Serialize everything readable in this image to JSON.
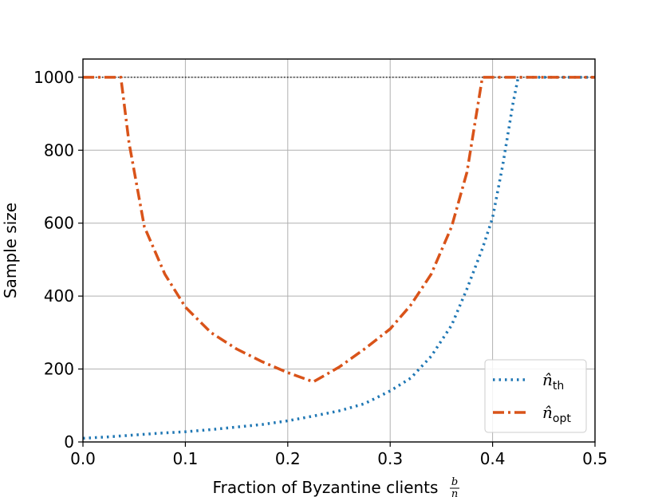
{
  "chart_data": {
    "type": "line",
    "xlabel": "Fraction of Byzantine clients",
    "xlabel_fraction": {
      "numerator": "b",
      "denominator": "n"
    },
    "ylabel": "Sample size",
    "xlim": [
      0.0,
      0.5
    ],
    "ylim": [
      0,
      1050
    ],
    "xticks": [
      0.0,
      0.1,
      0.2,
      0.3,
      0.4,
      0.5
    ],
    "xtick_labels": [
      "0.0",
      "0.1",
      "0.2",
      "0.3",
      "0.4",
      "0.5"
    ],
    "yticks": [
      0,
      200,
      400,
      600,
      800,
      1000
    ],
    "ytick_labels": [
      "0",
      "200",
      "400",
      "600",
      "800",
      "1000"
    ],
    "grid": true,
    "legend_position": "lower-right",
    "reference_line": {
      "y": 1000,
      "style": "dotted",
      "color": "#000000"
    },
    "series": [
      {
        "name": "n̂th",
        "legend_base": "n̂",
        "legend_sub": "th",
        "color": "#1f77b4",
        "style": "dotted",
        "x": [
          0.0,
          0.025,
          0.05,
          0.075,
          0.1,
          0.125,
          0.15,
          0.175,
          0.2,
          0.225,
          0.25,
          0.275,
          0.3,
          0.32,
          0.34,
          0.36,
          0.375,
          0.39,
          0.4,
          0.41,
          0.42,
          0.425,
          0.45,
          0.475,
          0.5
        ],
        "y": [
          10,
          14,
          19,
          24,
          28,
          34,
          41,
          48,
          58,
          71,
          85,
          105,
          140,
          175,
          235,
          320,
          420,
          530,
          615,
          760,
          930,
          1000,
          1000,
          1000,
          1000
        ]
      },
      {
        "name": "n̂opt",
        "legend_base": "n̂",
        "legend_sub": "opt",
        "color": "#d95319",
        "style": "dashdot",
        "x": [
          0.0,
          0.02,
          0.037,
          0.045,
          0.06,
          0.08,
          0.1,
          0.125,
          0.15,
          0.175,
          0.2,
          0.225,
          0.25,
          0.275,
          0.3,
          0.32,
          0.34,
          0.36,
          0.375,
          0.39,
          0.4,
          0.42,
          0.45,
          0.5
        ],
        "y": [
          1000,
          1000,
          1000,
          820,
          590,
          460,
          370,
          300,
          255,
          220,
          190,
          165,
          205,
          255,
          310,
          375,
          460,
          590,
          740,
          1000,
          1000,
          1000,
          1000,
          1000
        ]
      }
    ]
  }
}
